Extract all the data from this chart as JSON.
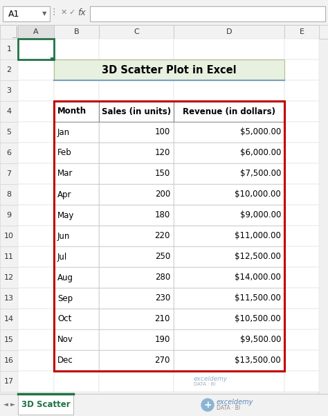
{
  "title": "3D Scatter Plot in Excel",
  "title_bg": "#e8f0e0",
  "title_border": "#b0c090",
  "sheet_tab": "3D Scatter",
  "sheet_tab_color": "#217346",
  "col_headers": [
    "Month",
    "Sales (in units)",
    "Revenue (in dollars)"
  ],
  "rows": [
    [
      "Jan",
      "100",
      "$5,000.00"
    ],
    [
      "Feb",
      "120",
      "$6,000.00"
    ],
    [
      "Mar",
      "150",
      "$7,500.00"
    ],
    [
      "Apr",
      "200",
      "$10,000.00"
    ],
    [
      "May",
      "180",
      "$9,000.00"
    ],
    [
      "Jun",
      "220",
      "$11,000.00"
    ],
    [
      "Jul",
      "250",
      "$12,500.00"
    ],
    [
      "Aug",
      "280",
      "$14,000.00"
    ],
    [
      "Sep",
      "230",
      "$11,500.00"
    ],
    [
      "Oct",
      "210",
      "$10,500.00"
    ],
    [
      "Nov",
      "190",
      "$9,500.00"
    ],
    [
      "Dec",
      "270",
      "$13,500.00"
    ]
  ],
  "col_letters": [
    "A",
    "B",
    "C",
    "D",
    "E"
  ],
  "formula_bar_cell": "A1",
  "bg_color": "#f2f2f2",
  "table_border_color": "#c00000",
  "selected_cell_border": "#217346",
  "watermark_color": "#8ab4d4"
}
